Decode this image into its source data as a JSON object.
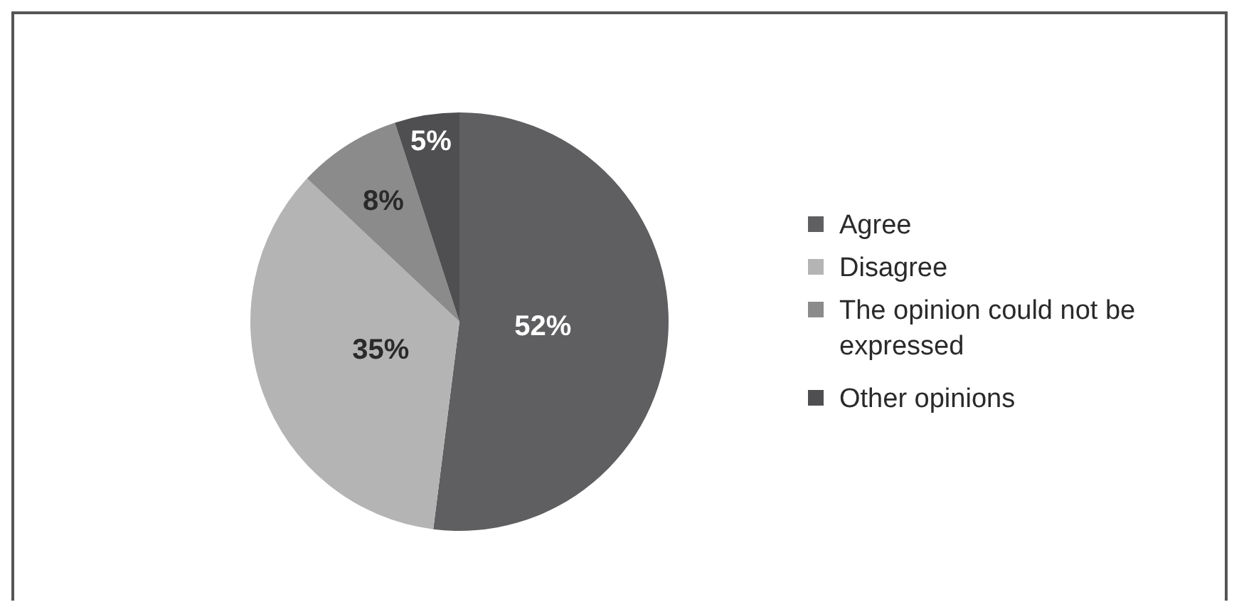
{
  "chart_data": {
    "type": "pie",
    "categories": [
      "Agree",
      "Disagree",
      "The opinion could not be expressed",
      "Other opinions"
    ],
    "values": [
      52,
      35,
      8,
      5
    ],
    "colors": [
      "#5f5f61",
      "#b4b4b4",
      "#8b8b8b",
      "#4f4f51"
    ],
    "value_labels": [
      "52%",
      "35%",
      "8%",
      "5%"
    ],
    "legend": "right"
  }
}
